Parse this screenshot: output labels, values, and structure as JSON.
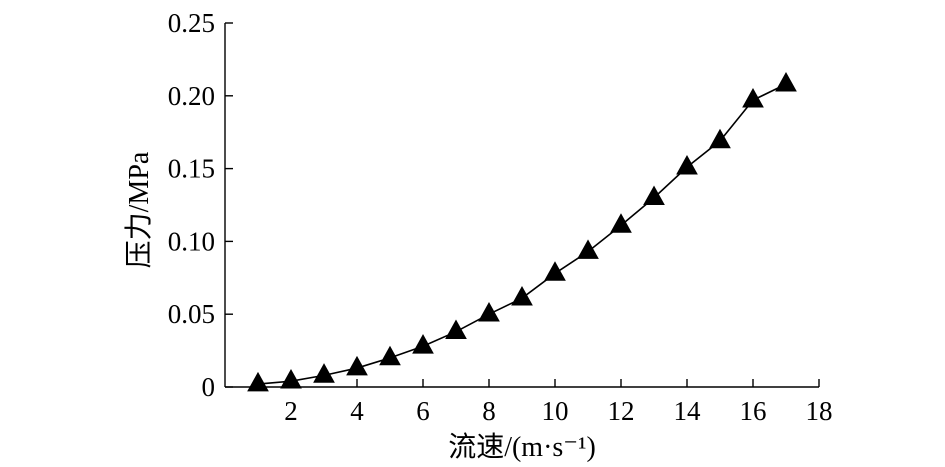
{
  "chart_data": {
    "type": "line",
    "title": "",
    "xlabel": "流速/(m·s⁻¹)",
    "ylabel": "压力/MPa",
    "xlim": [
      0,
      18
    ],
    "ylim": [
      0,
      0.25
    ],
    "x_ticks": [
      2,
      4,
      6,
      8,
      10,
      12,
      14,
      16,
      18
    ],
    "x_tick_labels": [
      "2",
      "4",
      "6",
      "8",
      "10",
      "12",
      "14",
      "16",
      "18"
    ],
    "y_ticks": [
      0,
      0.05,
      0.1,
      0.15,
      0.2,
      0.25
    ],
    "y_tick_labels": [
      "0",
      "0.05",
      "0.10",
      "0.15",
      "0.20",
      "0.25"
    ],
    "grid": false,
    "legend": "none",
    "marker": "filled-triangle",
    "line_color": "#000000",
    "series": [
      {
        "x": [
          1,
          2,
          3,
          4,
          5,
          6,
          7,
          8,
          9,
          10,
          11,
          12,
          13,
          14,
          15,
          16,
          17
        ],
        "y": [
          0.002,
          0.004,
          0.008,
          0.013,
          0.02,
          0.028,
          0.038,
          0.05,
          0.061,
          0.078,
          0.093,
          0.111,
          0.13,
          0.151,
          0.169,
          0.197,
          0.208
        ]
      }
    ]
  }
}
